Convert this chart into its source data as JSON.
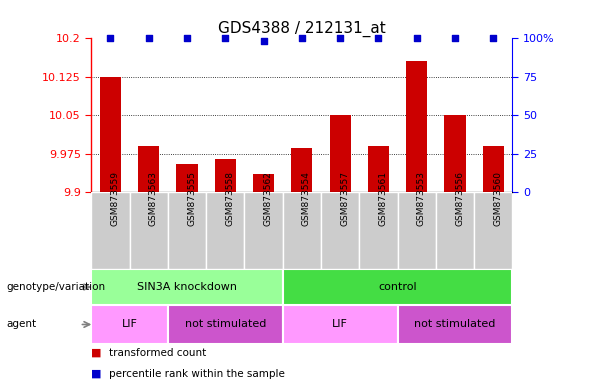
{
  "title": "GDS4388 / 212131_at",
  "samples": [
    "GSM873559",
    "GSM873563",
    "GSM873555",
    "GSM873558",
    "GSM873562",
    "GSM873554",
    "GSM873557",
    "GSM873561",
    "GSM873553",
    "GSM873556",
    "GSM873560"
  ],
  "bar_values": [
    10.125,
    9.99,
    9.955,
    9.965,
    9.935,
    9.985,
    10.05,
    9.99,
    10.155,
    10.05,
    9.99
  ],
  "dot_values": [
    100,
    100,
    100,
    100,
    98,
    100,
    100,
    100,
    100,
    100,
    100
  ],
  "ylim": [
    9.9,
    10.2
  ],
  "yticks": [
    9.9,
    9.975,
    10.05,
    10.125,
    10.2
  ],
  "ytick_labels": [
    "9.9",
    "9.975",
    "10.05",
    "10.125",
    "10.2"
  ],
  "right_yticks_pct": [
    0,
    25,
    50,
    75,
    100
  ],
  "right_ytick_labels": [
    "0",
    "25",
    "50",
    "75",
    "100%"
  ],
  "bar_color": "#cc0000",
  "dot_color": "#0000cc",
  "sample_bg_color": "#cccccc",
  "genotype_groups": [
    {
      "label": "SIN3A knockdown",
      "start": 0,
      "end": 5,
      "color": "#99ff99"
    },
    {
      "label": "control",
      "start": 5,
      "end": 11,
      "color": "#44dd44"
    }
  ],
  "agent_groups": [
    {
      "label": "LIF",
      "start": 0,
      "end": 2,
      "color": "#ff99ff"
    },
    {
      "label": "not stimulated",
      "start": 2,
      "end": 5,
      "color": "#cc55cc"
    },
    {
      "label": "LIF",
      "start": 5,
      "end": 8,
      "color": "#ff99ff"
    },
    {
      "label": "not stimulated",
      "start": 8,
      "end": 11,
      "color": "#cc55cc"
    }
  ],
  "legend_items": [
    {
      "label": "transformed count",
      "color": "#cc0000"
    },
    {
      "label": "percentile rank within the sample",
      "color": "#0000cc"
    }
  ],
  "left_label": "genotype/variation",
  "agent_label": "agent",
  "title_fontsize": 11,
  "tick_fontsize": 8,
  "bar_width": 0.55
}
